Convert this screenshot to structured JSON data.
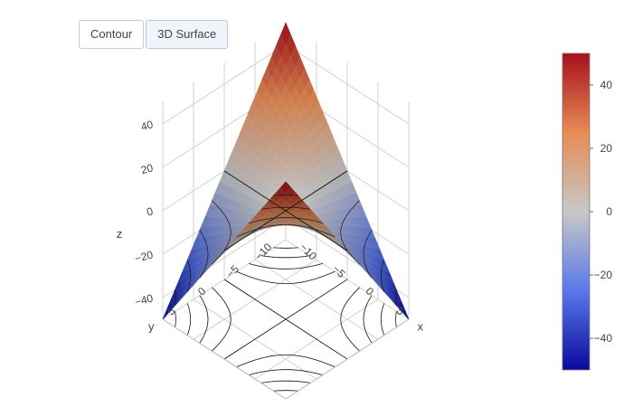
{
  "toolbar": {
    "buttons": [
      {
        "label": "Contour",
        "active": false
      },
      {
        "label": "3D Surface",
        "active": true
      }
    ]
  },
  "chart_data": {
    "type": "surface",
    "function": "z = x*y/2 (saddle), drawn on x,y in [-10,10]",
    "x_range": [
      -10,
      10
    ],
    "y_range": [
      -10,
      10
    ],
    "z_range": [
      -50,
      50
    ],
    "axes": {
      "x": {
        "title": "x",
        "ticks": [
          -10,
          -5,
          0,
          5
        ]
      },
      "y": {
        "title": "y",
        "ticks": [
          -10,
          -5,
          0,
          5
        ]
      },
      "z": {
        "title": "z",
        "ticks": [
          -40,
          -20,
          0,
          20,
          40
        ]
      }
    },
    "colorscale": {
      "name": "diverging blue-grey-red",
      "stops": [
        [
          0,
          "#0a0a9c"
        ],
        [
          0.25,
          "#5a78ea"
        ],
        [
          0.5,
          "#c8c8c8"
        ],
        [
          0.75,
          "#e58c55"
        ],
        [
          1,
          "#a80f1c"
        ]
      ],
      "cmin": -50,
      "cmax": 50,
      "ticks": [
        40,
        20,
        0,
        -20,
        -40
      ]
    },
    "contour_levels": [
      -40,
      -30,
      -20,
      -10,
      0,
      10,
      20,
      30,
      40
    ]
  }
}
